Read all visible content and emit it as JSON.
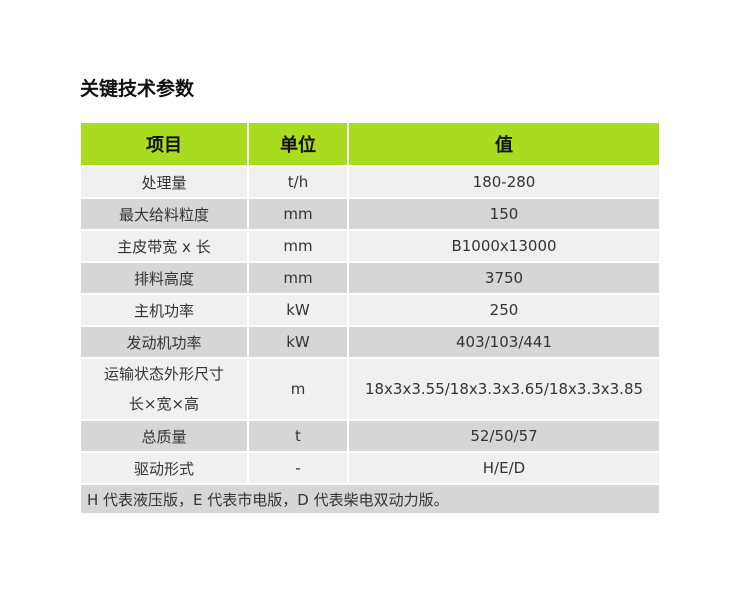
{
  "title": "关键技术参数",
  "colors": {
    "header": "#a9db1e",
    "row_light": "#f0f0f0",
    "row_dark": "#d6d6d6"
  },
  "headers": [
    "项目",
    "单位",
    "值"
  ],
  "rows": [
    {
      "item": "处理量",
      "unit": "t/h",
      "value": "180-280"
    },
    {
      "item": "最大给料粒度",
      "unit": "mm",
      "value": "150"
    },
    {
      "item": "主皮带宽 x 长",
      "unit": "mm",
      "value": "B1000x13000"
    },
    {
      "item": "排料高度",
      "unit": "mm",
      "value": "3750"
    },
    {
      "item": "主机功率",
      "unit": "kW",
      "value": "250"
    },
    {
      "item": "发动机功率",
      "unit": "kW",
      "value": "403/103/441"
    },
    {
      "item": "运输状态外形尺寸",
      "item_line2": "长×宽×高",
      "unit": "m",
      "value": "18x3x3.55/18x3.3x3.65/18x3.3x3.85"
    },
    {
      "item": "总质量",
      "unit": "t",
      "value": "52/50/57"
    },
    {
      "item": "驱动形式",
      "unit": "-",
      "value": "H/E/D"
    }
  ],
  "footnote": "H 代表液压版，E 代表市电版，D 代表柴电双动力版。"
}
